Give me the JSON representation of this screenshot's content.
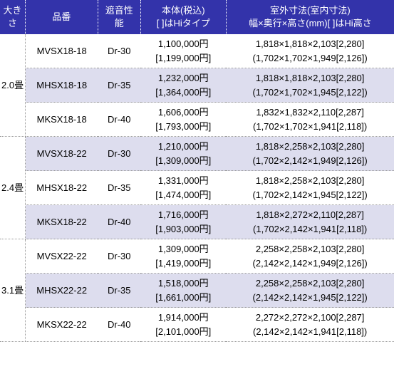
{
  "headers": {
    "size": "大きさ",
    "part": "品番",
    "perf": "遮音性能",
    "price": "本体(税込)\n[ ]はHiタイプ",
    "dim": "室外寸法(室内寸法)\n幅×奥行×高さ(mm)[ ]はHi高さ"
  },
  "groups": [
    {
      "size": "2.0畳",
      "rows": [
        {
          "alt": false,
          "part": "MVSX18-18",
          "perf": "Dr-30",
          "price1": "1,100,000円",
          "price2": "[1,199,000円]",
          "dim1": "1,818×1,818×2,103[2,280]",
          "dim2": "(1,702×1,702×1,949[2,126])"
        },
        {
          "alt": true,
          "part": "MHSX18-18",
          "perf": "Dr-35",
          "price1": "1,232,000円",
          "price2": "[1,364,000円]",
          "dim1": "1,818×1,818×2,103[2,280]",
          "dim2": "(1,702×1,702×1,945[2,122])"
        },
        {
          "alt": false,
          "part": "MKSX18-18",
          "perf": "Dr-40",
          "price1": "1,606,000円",
          "price2": "[1,793,000円]",
          "dim1": "1,832×1,832×2,110[2,287]",
          "dim2": "(1,702×1,702×1,941[2,118])"
        }
      ]
    },
    {
      "size": "2.4畳",
      "rows": [
        {
          "alt": true,
          "part": "MVSX18-22",
          "perf": "Dr-30",
          "price1": "1,210,000円",
          "price2": "[1,309,000円]",
          "dim1": "1,818×2,258×2,103[2,280]",
          "dim2": "(1,702×2,142×1,949[2,126])"
        },
        {
          "alt": false,
          "part": "MHSX18-22",
          "perf": "Dr-35",
          "price1": "1,331,000円",
          "price2": "[1,474,000円]",
          "dim1": "1,818×2,258×2,103[2,280]",
          "dim2": "(1,702×2,142×1,945[2,122])"
        },
        {
          "alt": true,
          "part": "MKSX18-22",
          "perf": "Dr-40",
          "price1": "1,716,000円",
          "price2": "[1,903,000円]",
          "dim1": "1,818×2,272×2,110[2,287]",
          "dim2": "(1,702×2,142×1,941[2,118])"
        }
      ]
    },
    {
      "size": "3.1畳",
      "rows": [
        {
          "alt": false,
          "part": "MVSX22-22",
          "perf": "Dr-30",
          "price1": "1,309,000円",
          "price2": "[1,419,000円]",
          "dim1": "2,258×2,258×2,103[2,280]",
          "dim2": "(2,142×2,142×1,949[2,126])"
        },
        {
          "alt": true,
          "part": "MHSX22-22",
          "perf": "Dr-35",
          "price1": "1,518,000円",
          "price2": "[1,661,000円]",
          "dim1": "2,258×2,258×2,103[2,280]",
          "dim2": "(2,142×2,142×1,945[2,122])"
        },
        {
          "alt": false,
          "part": "MKSX22-22",
          "perf": "Dr-40",
          "price1": "1,914,000円",
          "price2": "[2,101,000円]",
          "dim1": "2,272×2,272×2,100[2,287]",
          "dim2": "(2,142×2,142×1,941[2,118])"
        }
      ]
    }
  ]
}
